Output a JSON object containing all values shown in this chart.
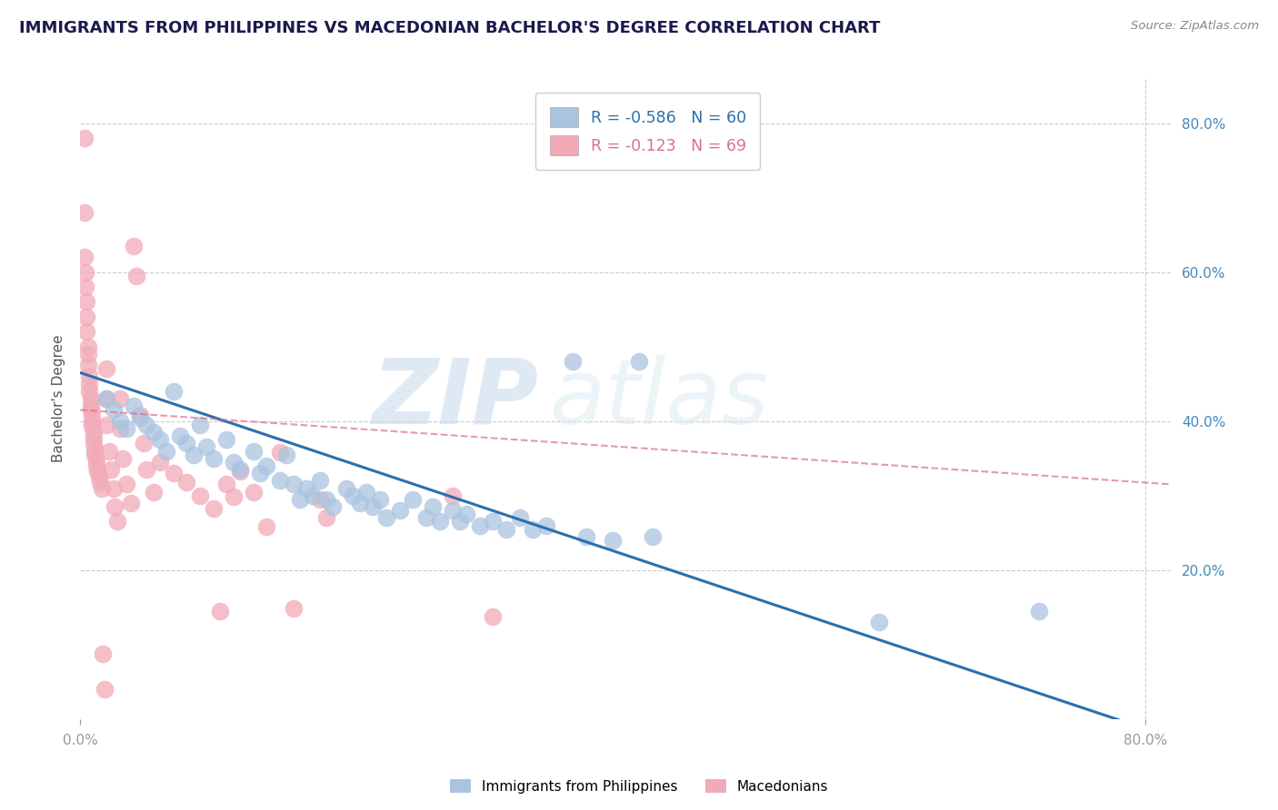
{
  "title": "IMMIGRANTS FROM PHILIPPINES VS MACEDONIAN BACHELOR'S DEGREE CORRELATION CHART",
  "source": "Source: ZipAtlas.com",
  "ylabel": "Bachelor's Degree",
  "watermark_zip": "ZIP",
  "watermark_atlas": "atlas",
  "legend_r1": "R = -0.586",
  "legend_n1": "N = 60",
  "legend_r2": "R = -0.123",
  "legend_n2": "N = 69",
  "legend_label1": "Immigrants from Philippines",
  "legend_label2": "Macedonians",
  "xlim": [
    0.0,
    0.82
  ],
  "ylim": [
    0.0,
    0.86
  ],
  "yticks": [
    0.2,
    0.4,
    0.6,
    0.8
  ],
  "ytick_labels": [
    "20.0%",
    "40.0%",
    "60.0%",
    "80.0%"
  ],
  "xtick_left": 0.0,
  "xtick_right": 0.8,
  "blue_color": "#aac4e0",
  "pink_color": "#f2aab8",
  "blue_line_color": "#2c6fad",
  "pink_line_color": "#d9708a",
  "title_color": "#1a1a4e",
  "axis_label_color": "#555555",
  "tick_color": "#999999",
  "right_tick_color": "#4488bb",
  "grid_color": "#cccccc",
  "background_color": "#ffffff",
  "blue_scatter": [
    [
      0.02,
      0.43
    ],
    [
      0.025,
      0.415
    ],
    [
      0.03,
      0.4
    ],
    [
      0.035,
      0.39
    ],
    [
      0.04,
      0.42
    ],
    [
      0.045,
      0.405
    ],
    [
      0.05,
      0.395
    ],
    [
      0.055,
      0.385
    ],
    [
      0.06,
      0.375
    ],
    [
      0.065,
      0.36
    ],
    [
      0.07,
      0.44
    ],
    [
      0.075,
      0.38
    ],
    [
      0.08,
      0.37
    ],
    [
      0.085,
      0.355
    ],
    [
      0.09,
      0.395
    ],
    [
      0.095,
      0.365
    ],
    [
      0.1,
      0.35
    ],
    [
      0.11,
      0.375
    ],
    [
      0.115,
      0.345
    ],
    [
      0.12,
      0.335
    ],
    [
      0.13,
      0.36
    ],
    [
      0.135,
      0.33
    ],
    [
      0.14,
      0.34
    ],
    [
      0.15,
      0.32
    ],
    [
      0.155,
      0.355
    ],
    [
      0.16,
      0.315
    ],
    [
      0.165,
      0.295
    ],
    [
      0.17,
      0.31
    ],
    [
      0.175,
      0.3
    ],
    [
      0.18,
      0.32
    ],
    [
      0.185,
      0.295
    ],
    [
      0.19,
      0.285
    ],
    [
      0.2,
      0.31
    ],
    [
      0.205,
      0.3
    ],
    [
      0.21,
      0.29
    ],
    [
      0.215,
      0.305
    ],
    [
      0.22,
      0.285
    ],
    [
      0.225,
      0.295
    ],
    [
      0.23,
      0.27
    ],
    [
      0.24,
      0.28
    ],
    [
      0.25,
      0.295
    ],
    [
      0.26,
      0.27
    ],
    [
      0.265,
      0.285
    ],
    [
      0.27,
      0.265
    ],
    [
      0.28,
      0.28
    ],
    [
      0.285,
      0.265
    ],
    [
      0.29,
      0.275
    ],
    [
      0.3,
      0.26
    ],
    [
      0.31,
      0.265
    ],
    [
      0.32,
      0.255
    ],
    [
      0.33,
      0.27
    ],
    [
      0.34,
      0.255
    ],
    [
      0.35,
      0.26
    ],
    [
      0.37,
      0.48
    ],
    [
      0.38,
      0.245
    ],
    [
      0.4,
      0.24
    ],
    [
      0.42,
      0.48
    ],
    [
      0.43,
      0.245
    ],
    [
      0.6,
      0.13
    ],
    [
      0.72,
      0.145
    ]
  ],
  "pink_scatter": [
    [
      0.003,
      0.78
    ],
    [
      0.003,
      0.68
    ],
    [
      0.003,
      0.62
    ],
    [
      0.004,
      0.6
    ],
    [
      0.004,
      0.58
    ],
    [
      0.005,
      0.56
    ],
    [
      0.005,
      0.54
    ],
    [
      0.005,
      0.52
    ],
    [
      0.006,
      0.5
    ],
    [
      0.006,
      0.49
    ],
    [
      0.006,
      0.475
    ],
    [
      0.007,
      0.46
    ],
    [
      0.007,
      0.45
    ],
    [
      0.007,
      0.44
    ],
    [
      0.008,
      0.43
    ],
    [
      0.008,
      0.42
    ],
    [
      0.008,
      0.415
    ],
    [
      0.009,
      0.408
    ],
    [
      0.009,
      0.4
    ],
    [
      0.009,
      0.393
    ],
    [
      0.01,
      0.385
    ],
    [
      0.01,
      0.378
    ],
    [
      0.01,
      0.37
    ],
    [
      0.011,
      0.362
    ],
    [
      0.011,
      0.355
    ],
    [
      0.012,
      0.348
    ],
    [
      0.012,
      0.34
    ],
    [
      0.013,
      0.332
    ],
    [
      0.014,
      0.325
    ],
    [
      0.015,
      0.318
    ],
    [
      0.016,
      0.31
    ],
    [
      0.017,
      0.088
    ],
    [
      0.018,
      0.04
    ],
    [
      0.02,
      0.47
    ],
    [
      0.02,
      0.43
    ],
    [
      0.02,
      0.395
    ],
    [
      0.022,
      0.36
    ],
    [
      0.023,
      0.335
    ],
    [
      0.025,
      0.31
    ],
    [
      0.026,
      0.285
    ],
    [
      0.028,
      0.265
    ],
    [
      0.03,
      0.43
    ],
    [
      0.03,
      0.39
    ],
    [
      0.032,
      0.35
    ],
    [
      0.035,
      0.315
    ],
    [
      0.038,
      0.29
    ],
    [
      0.04,
      0.635
    ],
    [
      0.042,
      0.595
    ],
    [
      0.045,
      0.408
    ],
    [
      0.048,
      0.37
    ],
    [
      0.05,
      0.335
    ],
    [
      0.055,
      0.305
    ],
    [
      0.06,
      0.345
    ],
    [
      0.07,
      0.33
    ],
    [
      0.08,
      0.318
    ],
    [
      0.09,
      0.3
    ],
    [
      0.1,
      0.282
    ],
    [
      0.105,
      0.145
    ],
    [
      0.11,
      0.315
    ],
    [
      0.115,
      0.298
    ],
    [
      0.12,
      0.332
    ],
    [
      0.13,
      0.305
    ],
    [
      0.14,
      0.258
    ],
    [
      0.15,
      0.358
    ],
    [
      0.16,
      0.148
    ],
    [
      0.18,
      0.295
    ],
    [
      0.185,
      0.27
    ],
    [
      0.28,
      0.3
    ],
    [
      0.31,
      0.138
    ]
  ],
  "blue_line_x": [
    0.0,
    0.82
  ],
  "blue_line_y": [
    0.465,
    -0.025
  ],
  "pink_line_x": [
    0.0,
    0.82
  ],
  "pink_line_y": [
    0.415,
    0.315
  ]
}
